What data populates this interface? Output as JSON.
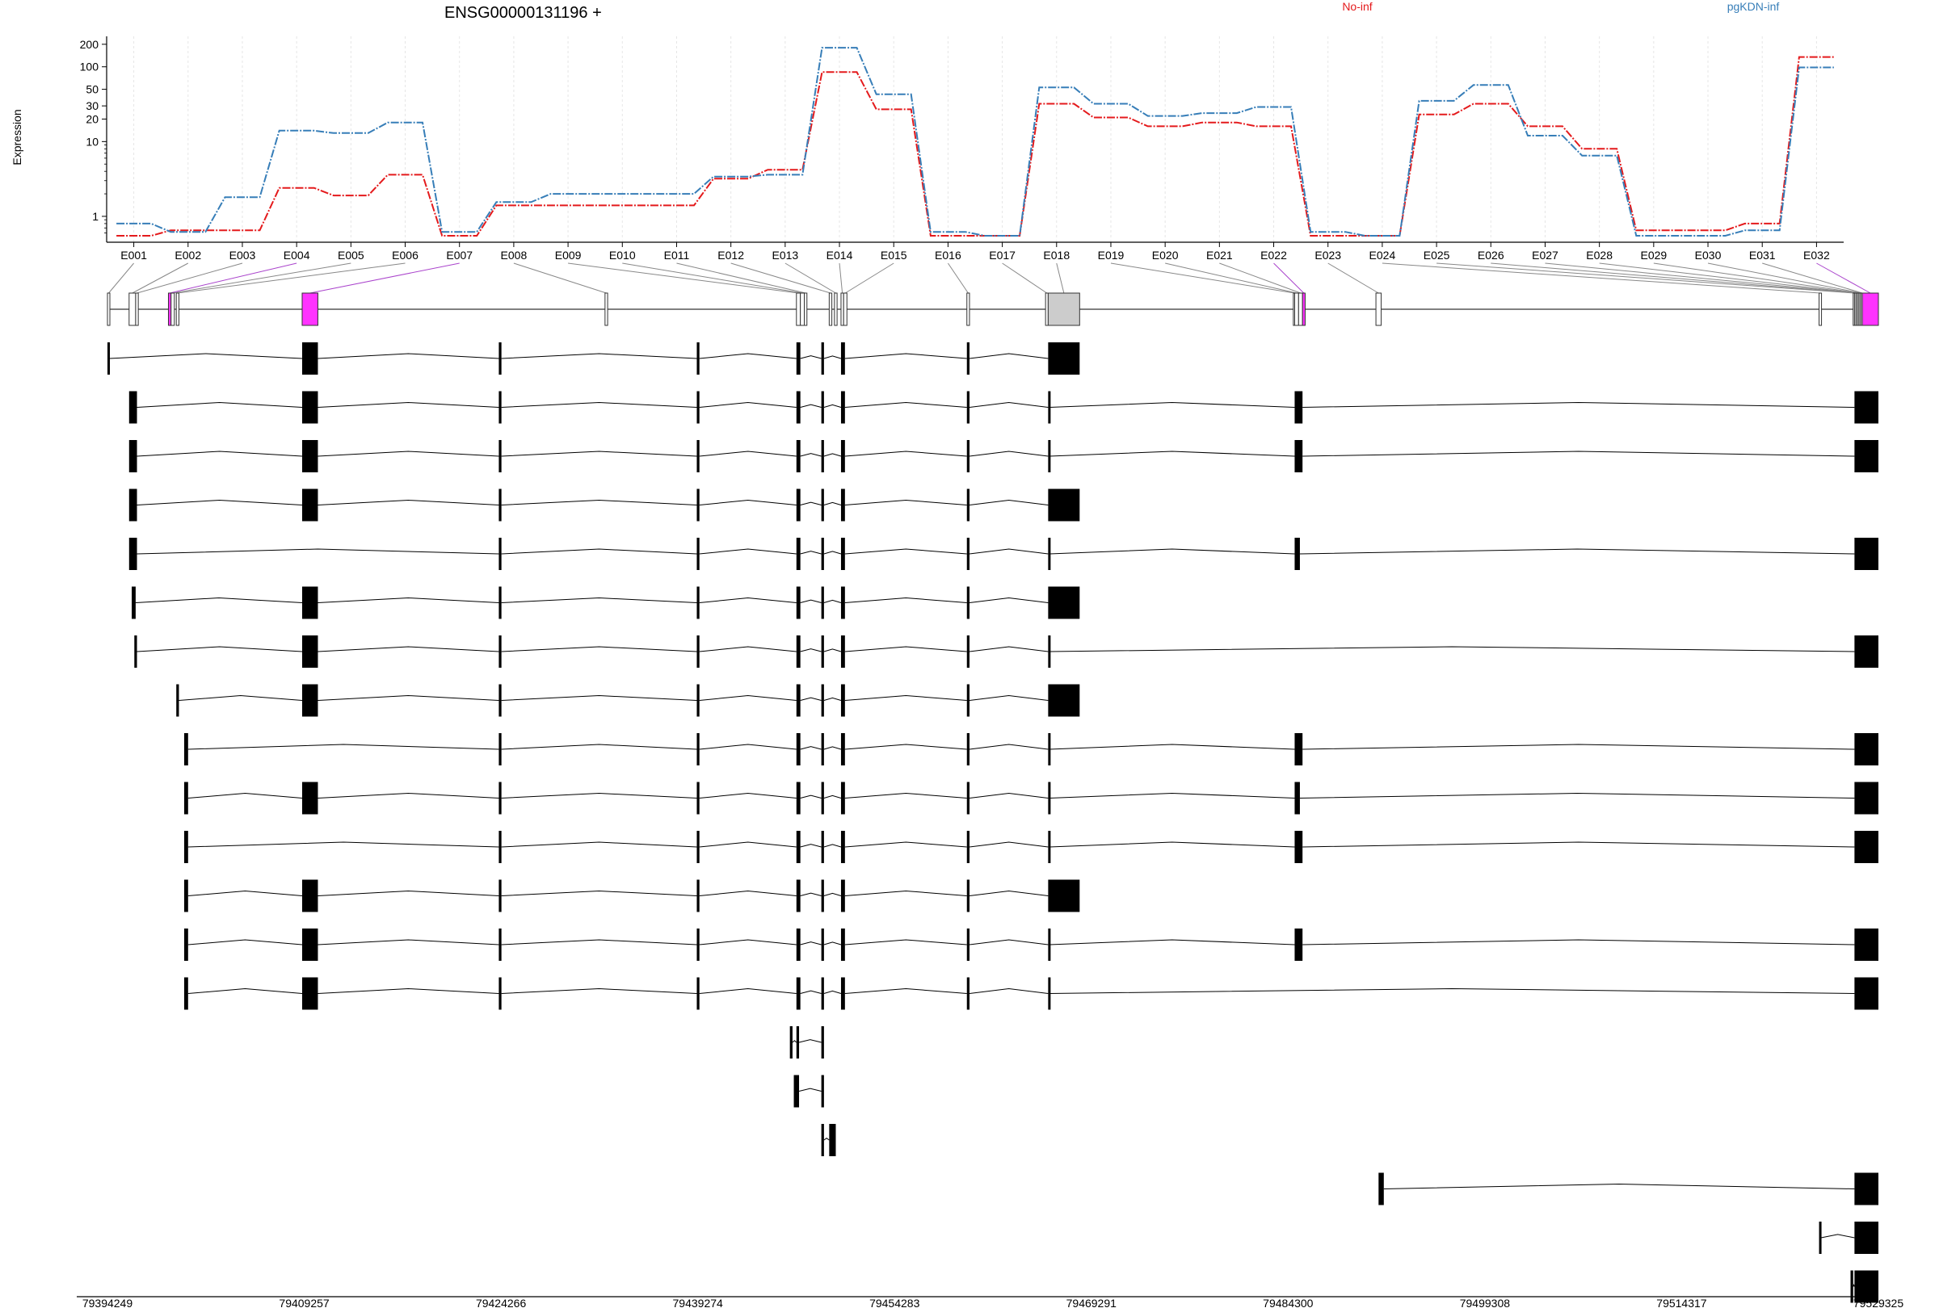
{
  "chart_data": {
    "type": "line",
    "title": "ENSG00000131196 +",
    "ylabel": "Expression",
    "yscale": "log",
    "yticks": [
      "1",
      "10",
      "20",
      "30",
      "50",
      "100",
      "200"
    ],
    "ytick_values": [
      1,
      10,
      20,
      30,
      50,
      100,
      200
    ],
    "categories": [
      "E001",
      "E002",
      "E003",
      "E004",
      "E005",
      "E006",
      "E007",
      "E008",
      "E009",
      "E010",
      "E011",
      "E012",
      "E013",
      "E014",
      "E015",
      "E016",
      "E017",
      "E018",
      "E019",
      "E020",
      "E021",
      "E022",
      "E023",
      "E024",
      "E025",
      "E026",
      "E027",
      "E028",
      "E029",
      "E030",
      "E031",
      "E032"
    ],
    "legend": [
      {
        "name": "No-inf",
        "color": "#e41a1c"
      },
      {
        "name": "pgKDN-inf",
        "color": "#377eb8"
      }
    ],
    "series": [
      {
        "name": "No-inf",
        "color": "#e41a1c",
        "values": [
          0.55,
          0.65,
          0.65,
          2.4,
          1.9,
          3.6,
          0.55,
          1.4,
          1.4,
          1.4,
          1.4,
          3.2,
          4.2,
          85,
          27,
          0.55,
          0.55,
          32,
          21,
          16,
          18,
          16,
          0.55,
          0.55,
          23,
          32,
          16,
          8,
          0.65,
          0.65,
          0.8,
          135
        ]
      },
      {
        "name": "pgKDN-inf",
        "color": "#377eb8",
        "values": [
          0.8,
          0.62,
          1.8,
          14,
          13,
          18,
          0.62,
          1.55,
          2,
          2,
          2,
          3.4,
          3.6,
          180,
          43,
          0.62,
          0.55,
          53,
          32,
          22,
          24,
          29,
          0.62,
          0.55,
          35,
          57,
          12,
          6.5,
          0.55,
          0.55,
          0.65,
          98
        ]
      }
    ],
    "exons": [
      {
        "id": "E001",
        "start": 79394249,
        "end": 79394400
      },
      {
        "id": "E002",
        "start": 79395900,
        "end": 79396400
      },
      {
        "id": "E003",
        "start": 79396400,
        "end": 79396600
      },
      {
        "id": "E004",
        "start": 79398900,
        "end": 79399100
      },
      {
        "id": "E005",
        "start": 79399100,
        "end": 79399350
      },
      {
        "id": "E006",
        "start": 79399500,
        "end": 79399700
      },
      {
        "id": "E007",
        "start": 79409100,
        "end": 79410300
      },
      {
        "id": "E008",
        "start": 79432200,
        "end": 79432400
      },
      {
        "id": "E009",
        "start": 79446800,
        "end": 79447100
      },
      {
        "id": "E010",
        "start": 79447100,
        "end": 79447400
      },
      {
        "id": "E011",
        "start": 79447400,
        "end": 79447600
      },
      {
        "id": "E012",
        "start": 79449300,
        "end": 79449500
      },
      {
        "id": "E013",
        "start": 79449700,
        "end": 79449900
      },
      {
        "id": "E014",
        "start": 79450200,
        "end": 79450400
      },
      {
        "id": "E015",
        "start": 79450400,
        "end": 79450650
      },
      {
        "id": "E016",
        "start": 79459800,
        "end": 79460000
      },
      {
        "id": "E017",
        "start": 79465800,
        "end": 79466000
      },
      {
        "id": "E018",
        "start": 79466000,
        "end": 79468400
      },
      {
        "id": "E019",
        "start": 79484700,
        "end": 79484800
      },
      {
        "id": "E020",
        "start": 79484800,
        "end": 79485100
      },
      {
        "id": "E021",
        "start": 79485100,
        "end": 79485400
      },
      {
        "id": "E022",
        "start": 79485400,
        "end": 79485600
      },
      {
        "id": "E023",
        "start": 79491000,
        "end": 79491400
      },
      {
        "id": "E024",
        "start": 79524800,
        "end": 79524950
      },
      {
        "id": "E025",
        "start": 79527400,
        "end": 79527500
      },
      {
        "id": "E026",
        "start": 79527500,
        "end": 79527600
      },
      {
        "id": "E027",
        "start": 79527600,
        "end": 79527700
      },
      {
        "id": "E028",
        "start": 79527700,
        "end": 79527800
      },
      {
        "id": "E029",
        "start": 79527800,
        "end": 79527900
      },
      {
        "id": "E030",
        "start": 79527900,
        "end": 79528000
      },
      {
        "id": "E031",
        "start": 79528000,
        "end": 79528100
      },
      {
        "id": "E032",
        "start": 79528100,
        "end": 79529325
      }
    ],
    "highlighted_exons": [
      "E004",
      "E007",
      "E022",
      "E032"
    ],
    "transcripts": [
      [
        [
          79394249,
          79394400
        ],
        [
          79409100,
          79410300
        ],
        [
          79424100,
          79424300
        ],
        [
          79439200,
          79439400
        ],
        [
          79446800,
          79447100
        ],
        [
          79448700,
          79448900
        ],
        [
          79450200,
          79450500
        ],
        [
          79459800,
          79460000
        ],
        [
          79466000,
          79468400
        ]
      ],
      [
        [
          79395900,
          79396500
        ],
        [
          79409100,
          79410300
        ],
        [
          79424100,
          79424300
        ],
        [
          79439200,
          79439400
        ],
        [
          79446800,
          79447100
        ],
        [
          79448700,
          79448900
        ],
        [
          79450200,
          79450500
        ],
        [
          79459800,
          79460000
        ],
        [
          79466000,
          79466100
        ],
        [
          79484800,
          79485400
        ],
        [
          79527500,
          79529325
        ]
      ],
      [
        [
          79395900,
          79396500
        ],
        [
          79409100,
          79410300
        ],
        [
          79424100,
          79424300
        ],
        [
          79439200,
          79439400
        ],
        [
          79446800,
          79447100
        ],
        [
          79448700,
          79448900
        ],
        [
          79450200,
          79450500
        ],
        [
          79459800,
          79460000
        ],
        [
          79466000,
          79466100
        ],
        [
          79484800,
          79485400
        ],
        [
          79527500,
          79529325
        ]
      ],
      [
        [
          79395900,
          79396500
        ],
        [
          79409100,
          79410300
        ],
        [
          79424100,
          79424300
        ],
        [
          79439200,
          79439400
        ],
        [
          79446800,
          79447100
        ],
        [
          79448700,
          79448900
        ],
        [
          79450200,
          79450500
        ],
        [
          79459800,
          79460000
        ],
        [
          79466000,
          79468400
        ]
      ],
      [
        [
          79395900,
          79396500
        ],
        [
          79424100,
          79424300
        ],
        [
          79439200,
          79439400
        ],
        [
          79446800,
          79447100
        ],
        [
          79448700,
          79448900
        ],
        [
          79450200,
          79450500
        ],
        [
          79459800,
          79460000
        ],
        [
          79466000,
          79466100
        ],
        [
          79484800,
          79485200
        ],
        [
          79527500,
          79529325
        ]
      ],
      [
        [
          79396100,
          79396400
        ],
        [
          79409100,
          79410300
        ],
        [
          79424100,
          79424300
        ],
        [
          79439200,
          79439400
        ],
        [
          79446800,
          79447100
        ],
        [
          79448700,
          79448900
        ],
        [
          79450200,
          79450500
        ],
        [
          79459800,
          79460000
        ],
        [
          79466000,
          79468400
        ]
      ],
      [
        [
          79396300,
          79396500
        ],
        [
          79409100,
          79410300
        ],
        [
          79424100,
          79424300
        ],
        [
          79439200,
          79439400
        ],
        [
          79446800,
          79447100
        ],
        [
          79448700,
          79448900
        ],
        [
          79450200,
          79450500
        ],
        [
          79459800,
          79460000
        ],
        [
          79466000,
          79466100
        ],
        [
          79527500,
          79529325
        ]
      ],
      [
        [
          79399500,
          79399700
        ],
        [
          79409100,
          79410300
        ],
        [
          79424100,
          79424300
        ],
        [
          79439200,
          79439400
        ],
        [
          79446800,
          79447100
        ],
        [
          79448700,
          79448900
        ],
        [
          79450200,
          79450500
        ],
        [
          79459800,
          79460000
        ],
        [
          79466000,
          79468400
        ]
      ],
      [
        [
          79400100,
          79400400
        ],
        [
          79424100,
          79424300
        ],
        [
          79439200,
          79439400
        ],
        [
          79446800,
          79447100
        ],
        [
          79448700,
          79448900
        ],
        [
          79450200,
          79450500
        ],
        [
          79459800,
          79460000
        ],
        [
          79466000,
          79466100
        ],
        [
          79484800,
          79485400
        ],
        [
          79527500,
          79529325
        ]
      ],
      [
        [
          79400100,
          79400400
        ],
        [
          79409100,
          79410300
        ],
        [
          79424100,
          79424300
        ],
        [
          79439200,
          79439400
        ],
        [
          79446800,
          79447100
        ],
        [
          79448700,
          79448900
        ],
        [
          79450200,
          79450500
        ],
        [
          79459800,
          79460000
        ],
        [
          79466000,
          79466100
        ],
        [
          79484800,
          79485200
        ],
        [
          79527500,
          79529325
        ]
      ],
      [
        [
          79400100,
          79400400
        ],
        [
          79424100,
          79424300
        ],
        [
          79439200,
          79439400
        ],
        [
          79446800,
          79447100
        ],
        [
          79448700,
          79448900
        ],
        [
          79450200,
          79450500
        ],
        [
          79459800,
          79460000
        ],
        [
          79466000,
          79466100
        ],
        [
          79484800,
          79485400
        ],
        [
          79527500,
          79529325
        ]
      ],
      [
        [
          79400100,
          79400400
        ],
        [
          79409100,
          79410300
        ],
        [
          79424100,
          79424300
        ],
        [
          79439200,
          79439400
        ],
        [
          79446800,
          79447100
        ],
        [
          79448700,
          79448900
        ],
        [
          79450200,
          79450500
        ],
        [
          79459800,
          79460000
        ],
        [
          79466000,
          79468400
        ]
      ],
      [
        [
          79400100,
          79400400
        ],
        [
          79409100,
          79410300
        ],
        [
          79424100,
          79424300
        ],
        [
          79439200,
          79439400
        ],
        [
          79446800,
          79447100
        ],
        [
          79448700,
          79448900
        ],
        [
          79450200,
          79450500
        ],
        [
          79459800,
          79460000
        ],
        [
          79466000,
          79466100
        ],
        [
          79484800,
          79485400
        ],
        [
          79527500,
          79529325
        ]
      ],
      [
        [
          79400100,
          79400400
        ],
        [
          79409100,
          79410300
        ],
        [
          79424100,
          79424300
        ],
        [
          79439200,
          79439400
        ],
        [
          79446800,
          79447100
        ],
        [
          79448700,
          79448900
        ],
        [
          79450200,
          79450500
        ],
        [
          79459800,
          79460000
        ],
        [
          79466000,
          79466100
        ],
        [
          79527500,
          79529325
        ]
      ],
      [
        [
          79446300,
          79446500
        ],
        [
          79446800,
          79447000
        ],
        [
          79448700,
          79448900
        ]
      ],
      [
        [
          79446600,
          79447000
        ],
        [
          79448700,
          79448900
        ]
      ],
      [
        [
          79448700,
          79448900
        ],
        [
          79449300,
          79449800
        ]
      ],
      [
        [
          79491200,
          79491600
        ],
        [
          79527500,
          79529325
        ]
      ],
      [
        [
          79524800,
          79524950
        ],
        [
          79527500,
          79529325
        ]
      ],
      [
        [
          79527200,
          79527400
        ],
        [
          79527500,
          79529325
        ]
      ]
    ],
    "genomic_ticks": [
      "79394249",
      "79409257",
      "79424266",
      "79439274",
      "79454283",
      "79469291",
      "79484300",
      "79499308",
      "79514317",
      "79529325"
    ],
    "genomic_range": [
      79394249,
      79529325
    ],
    "grid": true,
    "legend_placement": "top"
  }
}
